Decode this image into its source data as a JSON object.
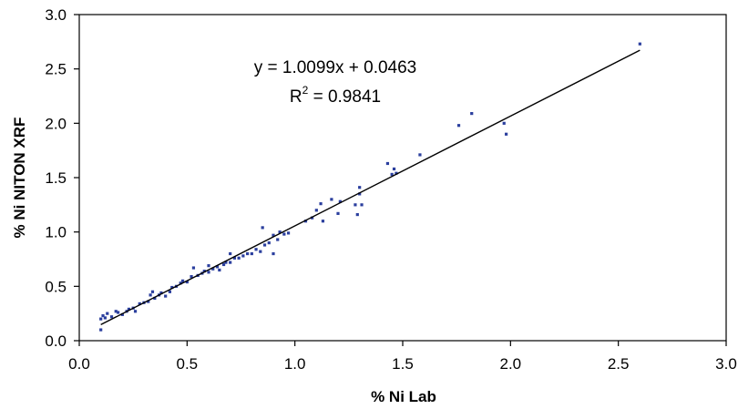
{
  "chart_data": {
    "type": "scatter",
    "xlabel": "% Ni Lab",
    "ylabel": "% Ni NITON XRF",
    "xlim": [
      0,
      3
    ],
    "ylim": [
      0,
      3
    ],
    "xticks": [
      "0.0",
      "0.5",
      "1.0",
      "1.5",
      "2.0",
      "2.5",
      "3.0"
    ],
    "yticks": [
      "0.0",
      "0.5",
      "1.0",
      "1.5",
      "2.0",
      "2.5",
      "3.0"
    ],
    "grid": false,
    "legend": "none",
    "marker_color": "#2b3f9e",
    "trendline": {
      "slope": 1.0099,
      "intercept": 0.0463,
      "x_range": [
        0.1,
        2.6
      ],
      "equation_label": "y = 1.0099x + 0.0463",
      "r2_prefix": "R",
      "r2_exponent": "2",
      "r2_value": " = 0.9841"
    },
    "points": [
      [
        0.1,
        0.1
      ],
      [
        0.1,
        0.2
      ],
      [
        0.11,
        0.23
      ],
      [
        0.12,
        0.21
      ],
      [
        0.13,
        0.25
      ],
      [
        0.15,
        0.22
      ],
      [
        0.17,
        0.27
      ],
      [
        0.18,
        0.26
      ],
      [
        0.2,
        0.24
      ],
      [
        0.22,
        0.27
      ],
      [
        0.23,
        0.29
      ],
      [
        0.25,
        0.3
      ],
      [
        0.26,
        0.27
      ],
      [
        0.28,
        0.34
      ],
      [
        0.3,
        0.35
      ],
      [
        0.32,
        0.36
      ],
      [
        0.33,
        0.42
      ],
      [
        0.34,
        0.45
      ],
      [
        0.35,
        0.39
      ],
      [
        0.37,
        0.42
      ],
      [
        0.38,
        0.44
      ],
      [
        0.4,
        0.41
      ],
      [
        0.42,
        0.45
      ],
      [
        0.43,
        0.49
      ],
      [
        0.45,
        0.5
      ],
      [
        0.47,
        0.53
      ],
      [
        0.48,
        0.55
      ],
      [
        0.5,
        0.54
      ],
      [
        0.52,
        0.59
      ],
      [
        0.53,
        0.67
      ],
      [
        0.55,
        0.6
      ],
      [
        0.57,
        0.62
      ],
      [
        0.58,
        0.64
      ],
      [
        0.6,
        0.63
      ],
      [
        0.6,
        0.69
      ],
      [
        0.62,
        0.66
      ],
      [
        0.64,
        0.68
      ],
      [
        0.65,
        0.65
      ],
      [
        0.67,
        0.7
      ],
      [
        0.68,
        0.72
      ],
      [
        0.7,
        0.72
      ],
      [
        0.7,
        0.8
      ],
      [
        0.72,
        0.76
      ],
      [
        0.74,
        0.76
      ],
      [
        0.76,
        0.78
      ],
      [
        0.78,
        0.8
      ],
      [
        0.8,
        0.8
      ],
      [
        0.82,
        0.84
      ],
      [
        0.84,
        0.82
      ],
      [
        0.85,
        1.04
      ],
      [
        0.86,
        0.88
      ],
      [
        0.88,
        0.9
      ],
      [
        0.9,
        0.97
      ],
      [
        0.9,
        0.8
      ],
      [
        0.92,
        0.93
      ],
      [
        0.93,
        1.0
      ],
      [
        0.95,
        0.98
      ],
      [
        0.97,
        0.99
      ],
      [
        1.05,
        1.1
      ],
      [
        1.08,
        1.13
      ],
      [
        1.1,
        1.2
      ],
      [
        1.12,
        1.26
      ],
      [
        1.13,
        1.1
      ],
      [
        1.17,
        1.3
      ],
      [
        1.2,
        1.17
      ],
      [
        1.21,
        1.28
      ],
      [
        1.28,
        1.25
      ],
      [
        1.29,
        1.16
      ],
      [
        1.3,
        1.35
      ],
      [
        1.3,
        1.41
      ],
      [
        1.31,
        1.25
      ],
      [
        1.43,
        1.63
      ],
      [
        1.45,
        1.53
      ],
      [
        1.46,
        1.58
      ],
      [
        1.47,
        1.54
      ],
      [
        1.58,
        1.71
      ],
      [
        1.76,
        1.98
      ],
      [
        1.82,
        2.09
      ],
      [
        1.97,
        2.0
      ],
      [
        1.98,
        1.9
      ],
      [
        2.6,
        2.73
      ]
    ]
  }
}
